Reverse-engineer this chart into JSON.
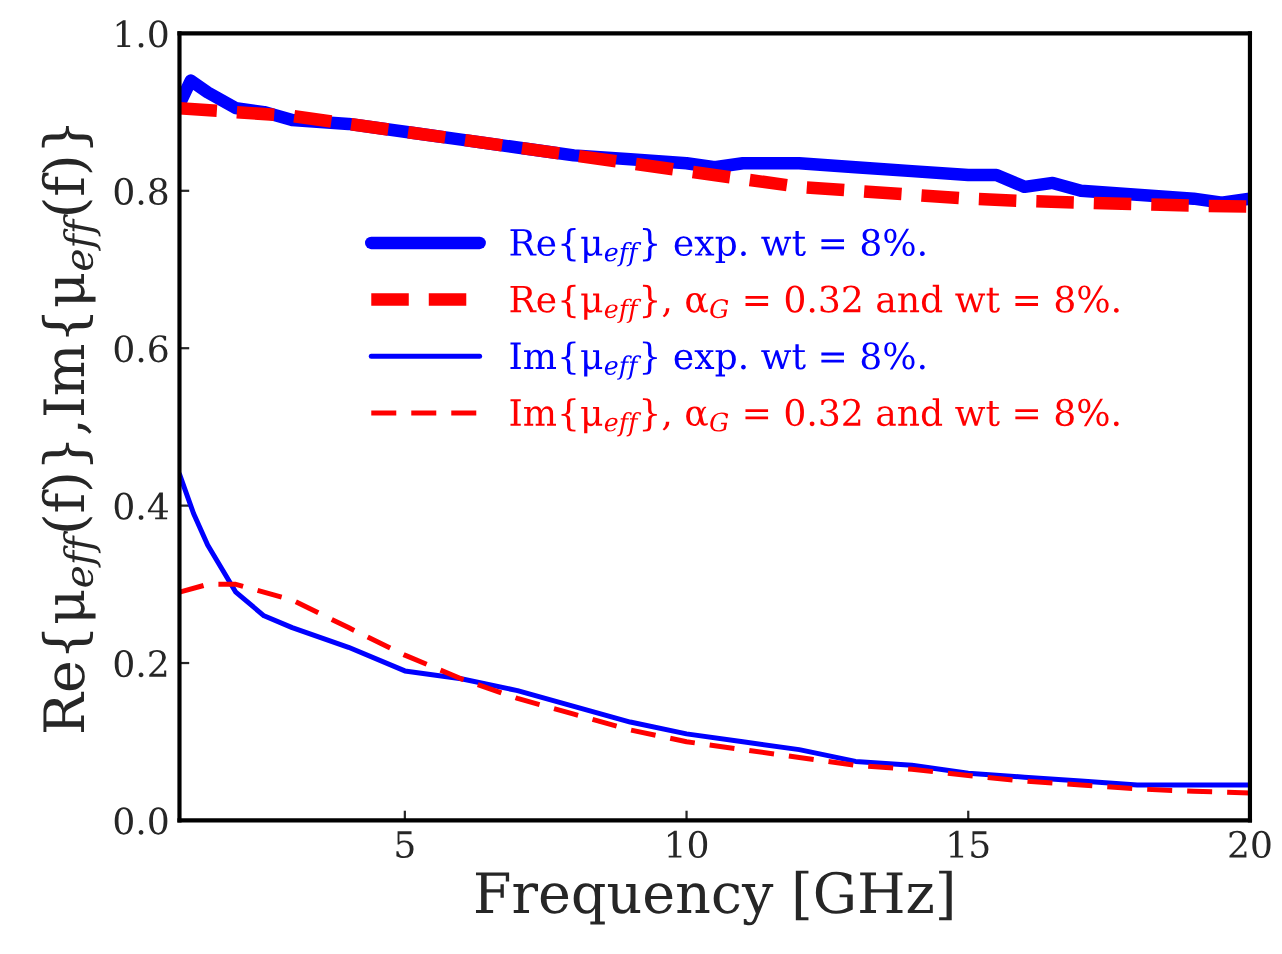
{
  "chart_data": {
    "type": "line",
    "xlabel": "Frequency [GHz]",
    "ylabel": "Re{μ$_{eff}$(f)},Im{μ$_{eff}$(f)}",
    "xlim": [
      1,
      20
    ],
    "ylim": [
      0,
      1.0
    ],
    "xticks": [
      5,
      10,
      15,
      20
    ],
    "yticks": [
      {
        "value": 0,
        "label": "0.0"
      },
      0.2,
      0.4,
      0.6,
      0.8,
      {
        "value": 1,
        "label": "1.0"
      }
    ],
    "grid": false,
    "legend": "center",
    "marker": "none",
    "series": [
      {
        "name": "Re{μ$_{eff}$} exp. wt = 8%.",
        "color": "#0000ff",
        "line_style": "solid",
        "x": [
          1,
          1.2,
          1.5,
          2,
          2.5,
          3,
          4,
          5,
          6,
          7,
          8,
          9,
          10,
          10.5,
          11,
          12,
          13,
          14,
          15,
          15.5,
          16,
          16.5,
          17,
          18,
          19,
          19.5,
          20
        ],
        "values": [
          0.91,
          0.94,
          0.925,
          0.905,
          0.9,
          0.89,
          0.885,
          0.875,
          0.865,
          0.855,
          0.845,
          0.84,
          0.835,
          0.83,
          0.835,
          0.835,
          0.83,
          0.825,
          0.82,
          0.82,
          0.805,
          0.81,
          0.8,
          0.795,
          0.79,
          0.785,
          0.79
        ]
      },
      {
        "name": "Re{μ$_{eff}$}, α$_{G}$ = 0.32 and wt = 8%.",
        "color": "#ff0000",
        "line_style": "dashed",
        "x": [
          1,
          2,
          3,
          4,
          5,
          6,
          7,
          8,
          9,
          10,
          11,
          12,
          13,
          14,
          15,
          16,
          17,
          18,
          19,
          20
        ],
        "values": [
          0.905,
          0.9,
          0.895,
          0.885,
          0.875,
          0.865,
          0.855,
          0.845,
          0.835,
          0.825,
          0.815,
          0.805,
          0.8,
          0.795,
          0.79,
          0.787,
          0.785,
          0.783,
          0.781,
          0.78
        ]
      },
      {
        "name": "Im{μ$_{eff}$} exp. wt = 8%.",
        "color": "#0000ff",
        "line_style": "solid",
        "x": [
          1,
          1.25,
          1.5,
          2,
          2.5,
          3,
          4,
          5,
          6,
          7,
          8,
          9,
          10,
          11,
          12,
          13,
          14,
          15,
          16,
          17,
          18,
          19,
          20
        ],
        "values": [
          0.44,
          0.39,
          0.35,
          0.29,
          0.26,
          0.245,
          0.22,
          0.19,
          0.18,
          0.165,
          0.145,
          0.125,
          0.11,
          0.1,
          0.09,
          0.075,
          0.07,
          0.06,
          0.055,
          0.05,
          0.045,
          0.045,
          0.045
        ]
      },
      {
        "name": "Im{μ$_{eff}$}, α$_{G}$ = 0.32 and wt = 8%.",
        "color": "#ff0000",
        "line_style": "dashed",
        "x": [
          1,
          1.5,
          2,
          3,
          4,
          5,
          6,
          7,
          8,
          9,
          10,
          11,
          12,
          13,
          14,
          15,
          16,
          17,
          18,
          19,
          20
        ],
        "values": [
          0.29,
          0.3,
          0.3,
          0.28,
          0.245,
          0.21,
          0.18,
          0.155,
          0.135,
          0.115,
          0.1,
          0.09,
          0.08,
          0.07,
          0.065,
          0.057,
          0.05,
          0.045,
          0.04,
          0.037,
          0.035
        ]
      }
    ]
  }
}
